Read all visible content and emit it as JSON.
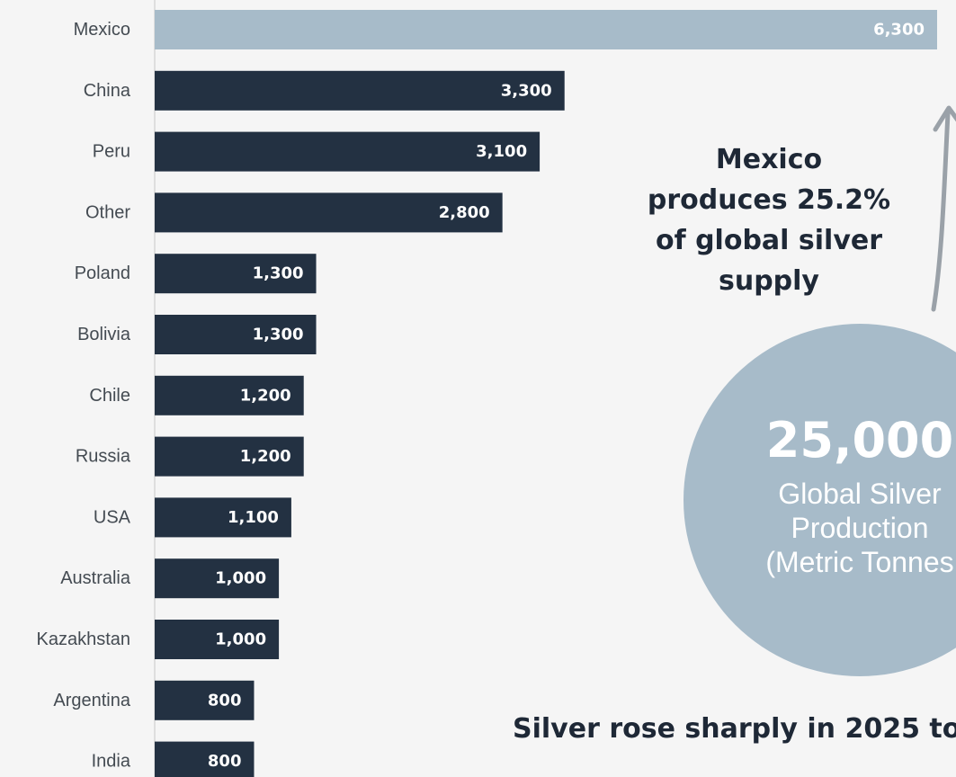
{
  "chart_data": {
    "type": "bar",
    "orientation": "horizontal",
    "categories": [
      "Mexico",
      "China",
      "Peru",
      "Other",
      "Poland",
      "Bolivia",
      "Chile",
      "Russia",
      "USA",
      "Australia",
      "Kazakhstan",
      "Argentina",
      "India"
    ],
    "values": [
      6300,
      3300,
      3100,
      2800,
      1300,
      1300,
      1200,
      1200,
      1100,
      1000,
      1000,
      800,
      800
    ],
    "value_labels": [
      "6,300",
      "3,300",
      "3,100",
      "2,800",
      "1,300",
      "1,300",
      "1,200",
      "1,200",
      "1,100",
      "1,000",
      "1,000",
      "800",
      "800"
    ],
    "highlight_category": "Mexico",
    "colors": {
      "highlight": "#a7bbc9",
      "bar": "#233142",
      "background": "#f5f5f5",
      "axis": "#c8c8c8"
    },
    "grid": false,
    "legend": "none"
  },
  "callout": {
    "lines": [
      "Mexico",
      "produces 25.2%",
      "of global silver",
      "supply"
    ]
  },
  "circle": {
    "number": "25,000",
    "caption_lines": [
      "Global Silver",
      "Production",
      "(Metric Tonnes"
    ]
  },
  "bottom_text": "Silver rose sharply in 2025 to"
}
